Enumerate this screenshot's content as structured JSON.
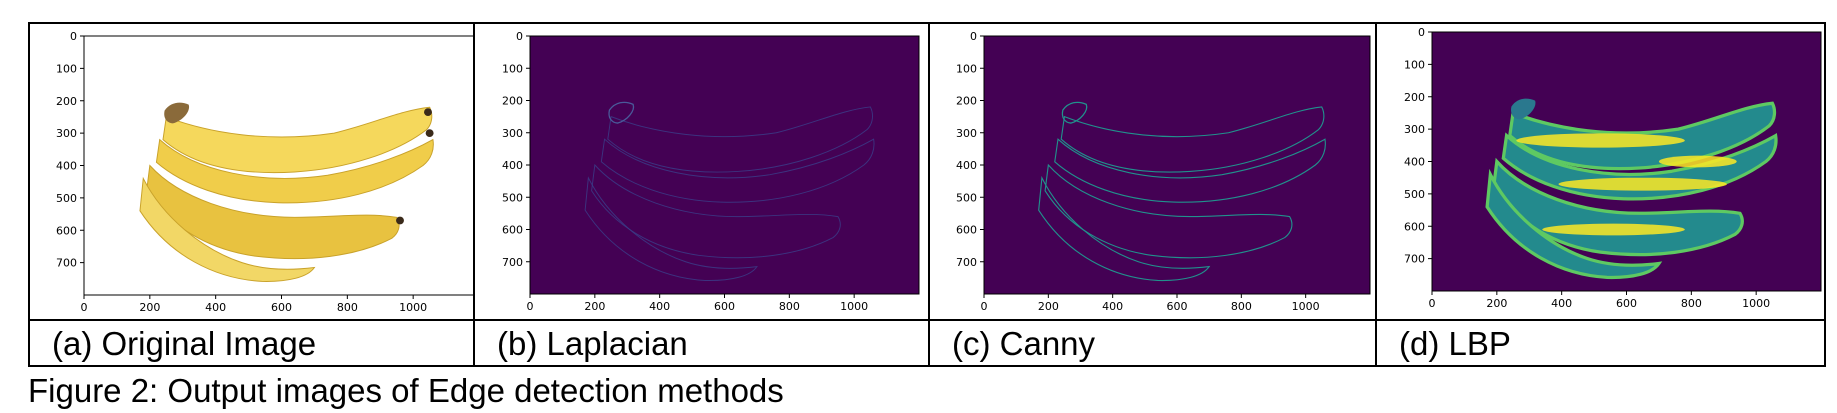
{
  "figure": {
    "caption": "Figure 2: Output images of Edge detection methods",
    "x_ticks": [
      "0",
      "200",
      "400",
      "600",
      "800",
      "1000"
    ],
    "y_ticks": [
      "0",
      "100",
      "200",
      "300",
      "400",
      "500",
      "600",
      "700"
    ],
    "panels": [
      {
        "id": "a",
        "label": "(a) Original Image",
        "style": "original",
        "bg": "#ffffff"
      },
      {
        "id": "b",
        "label": "(b) Laplacian",
        "style": "laplacian",
        "bg": "#440154"
      },
      {
        "id": "c",
        "label": "(c) Canny",
        "style": "canny",
        "bg": "#440154"
      },
      {
        "id": "d",
        "label": "(d) LBP",
        "style": "lbp",
        "bg": "#440154"
      }
    ],
    "colors": {
      "viridis_dark": "#440154",
      "viridis_teal": "#21918c",
      "viridis_yellow": "#fde725",
      "banana_yellow": "#f0cd4a"
    }
  }
}
